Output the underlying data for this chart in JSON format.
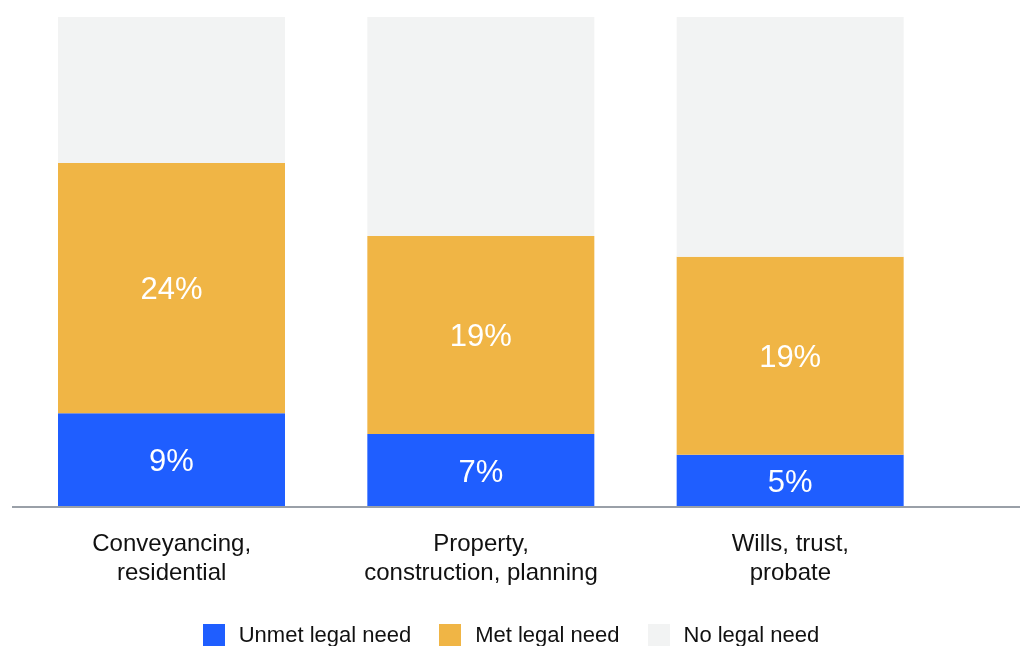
{
  "chart_data": {
    "type": "bar",
    "stacked": true,
    "categories": [
      "Conveyancing,\nresidential",
      "Property,\nconstruction, planning",
      "Wills, trust,\nprobate"
    ],
    "series": [
      {
        "name": "Unmet legal need",
        "color": "#1f5eff",
        "values": [
          9,
          7,
          5
        ],
        "value_labels": [
          "9%",
          "7%",
          "5%"
        ]
      },
      {
        "name": "Met legal need",
        "color": "#f0b545",
        "values": [
          24,
          19,
          19
        ],
        "value_labels": [
          "24%",
          "19%",
          "19%"
        ]
      },
      {
        "name": "No legal need",
        "color": "#f2f3f3",
        "values": [
          14,
          21,
          23
        ],
        "value_labels": [
          null,
          null,
          null
        ]
      }
    ],
    "ylim": [
      0,
      47
    ],
    "legend": "bottom",
    "grid": false
  }
}
